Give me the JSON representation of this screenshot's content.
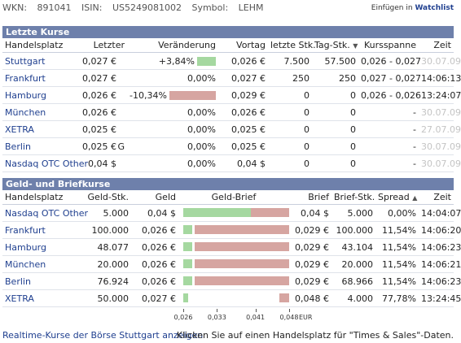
{
  "header": {
    "wkn_label": "WKN:",
    "wkn": "891041",
    "isin_label": "ISIN:",
    "isin": "US5249081002",
    "symbol_label": "Symbol:",
    "symbol": "LEHM",
    "watchlist_prefix": "Einfügen in",
    "watchlist_link": "Watchlist"
  },
  "last_quotes": {
    "title": "Letzte Kurse",
    "columns": [
      "Handelsplatz",
      "Letzter",
      "Veränderung",
      "Vortag",
      "letzte Stk.",
      "Tag-Stk.",
      "Kursspanne",
      "Zeit"
    ],
    "sort_arrow": "▼",
    "rows": [
      {
        "place": "Stuttgart",
        "last": "0,027 €",
        "flag": "",
        "change": "+3,84%",
        "change_pct": 3.84,
        "prev": "0,026 €",
        "last_qty": "7.500",
        "day_qty": "57.500",
        "range": "0,026 - 0,027",
        "time": "30.07.09",
        "time_gray": true
      },
      {
        "place": "Frankfurt",
        "last": "0,027 €",
        "flag": "",
        "change": "0,00%",
        "change_pct": 0,
        "prev": "0,027 €",
        "last_qty": "250",
        "day_qty": "250",
        "range": "0,027 - 0,027",
        "time": "14:06:13",
        "time_gray": false
      },
      {
        "place": "Hamburg",
        "last": "0,026 €",
        "flag": "",
        "change": "-10,34%",
        "change_pct": -10.34,
        "prev": "0,029 €",
        "last_qty": "0",
        "day_qty": "0",
        "range": "0,026 - 0,026",
        "time": "13:24:07",
        "time_gray": false
      },
      {
        "place": "München",
        "last": "0,026 €",
        "flag": "",
        "change": "0,00%",
        "change_pct": 0,
        "prev": "0,026 €",
        "last_qty": "0",
        "day_qty": "0",
        "range": "-",
        "time": "30.07.09",
        "time_gray": true
      },
      {
        "place": "XETRA",
        "last": "0,025 €",
        "flag": "",
        "change": "0,00%",
        "change_pct": 0,
        "prev": "0,025 €",
        "last_qty": "0",
        "day_qty": "0",
        "range": "-",
        "time": "27.07.09",
        "time_gray": true
      },
      {
        "place": "Berlin",
        "last": "0,025 €",
        "flag": "G",
        "change": "0,00%",
        "change_pct": 0,
        "prev": "0,025 €",
        "last_qty": "0",
        "day_qty": "0",
        "range": "-",
        "time": "30.07.09",
        "time_gray": true
      },
      {
        "place": "Nasdaq OTC Other",
        "last": "0,04 $",
        "flag": "",
        "change": "0,00%",
        "change_pct": 0,
        "prev": "0,04 $",
        "last_qty": "0",
        "day_qty": "0",
        "range": "-",
        "time": "30.07.09",
        "time_gray": true
      }
    ]
  },
  "bid_ask": {
    "title": "Geld- und Briefkurse",
    "columns": [
      "Handelsplatz",
      "Geld-Stk.",
      "Geld",
      "Geld-Brief",
      "Brief",
      "Brief-Stk.",
      "Spread",
      "Zeit"
    ],
    "sort_arrow": "▲",
    "scale_min": 0.026,
    "scale_max": 0.048,
    "ticks": [
      "0,026",
      "0,033",
      "0,041",
      "0,048"
    ],
    "tick_values": [
      0.026,
      0.033,
      0.041,
      0.048
    ],
    "unit": "EUR",
    "rows": [
      {
        "place": "Nasdaq OTC Other",
        "bid_qty": "5.000",
        "bid": "0,04 $",
        "bid_val": 0.04,
        "ask": "0,04 $",
        "ask_val": 0.04,
        "ask_qty": "5.000",
        "spread": "0,00%",
        "time": "14:04:07"
      },
      {
        "place": "Frankfurt",
        "bid_qty": "100.000",
        "bid": "0,026 €",
        "bid_val": 0.026,
        "ask": "0,029 €",
        "ask_val": 0.029,
        "ask_qty": "100.000",
        "spread": "11,54%",
        "time": "14:06:20"
      },
      {
        "place": "Hamburg",
        "bid_qty": "48.077",
        "bid": "0,026 €",
        "bid_val": 0.026,
        "ask": "0,029 €",
        "ask_val": 0.029,
        "ask_qty": "43.104",
        "spread": "11,54%",
        "time": "14:06:23"
      },
      {
        "place": "München",
        "bid_qty": "20.000",
        "bid": "0,026 €",
        "bid_val": 0.026,
        "ask": "0,029 €",
        "ask_val": 0.029,
        "ask_qty": "20.000",
        "spread": "11,54%",
        "time": "14:06:21"
      },
      {
        "place": "Berlin",
        "bid_qty": "76.924",
        "bid": "0,026 €",
        "bid_val": 0.026,
        "ask": "0,029 €",
        "ask_val": 0.029,
        "ask_qty": "68.966",
        "spread": "11,54%",
        "time": "14:06:23"
      },
      {
        "place": "XETRA",
        "bid_qty": "50.000",
        "bid": "0,027 €",
        "bid_val": 0.027,
        "ask": "0,048 €",
        "ask_val": 0.048,
        "ask_qty": "4.000",
        "spread": "77,78%",
        "time": "13:24:45"
      }
    ]
  },
  "footer": {
    "realtime_link": "Realtime-Kurse der Börse Stuttgart anzeigen",
    "hint": "Klicken Sie auf einen Handelsplatz für \"Times & Sales\"-Daten."
  },
  "colors": {
    "header_bg": "#6e80ab",
    "link": "#1f3f8f",
    "up_bar": "#a5d8a0",
    "down_bar": "#d6a5a1"
  }
}
